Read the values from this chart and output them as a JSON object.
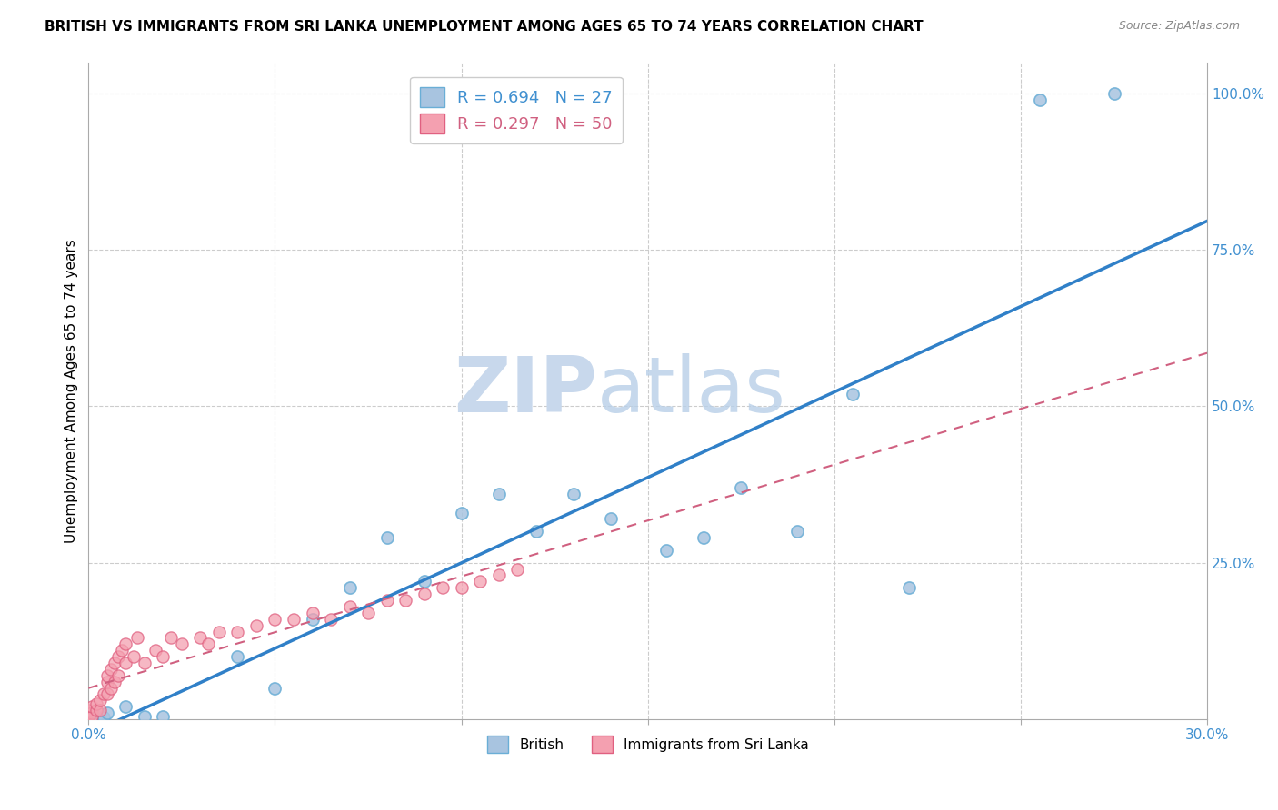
{
  "title": "BRITISH VS IMMIGRANTS FROM SRI LANKA UNEMPLOYMENT AMONG AGES 65 TO 74 YEARS CORRELATION CHART",
  "source": "Source: ZipAtlas.com",
  "ylabel": "Unemployment Among Ages 65 to 74 years",
  "xlim": [
    0.0,
    0.3
  ],
  "ylim": [
    0.0,
    1.05
  ],
  "xticks": [
    0.0,
    0.05,
    0.1,
    0.15,
    0.2,
    0.25,
    0.3
  ],
  "xticklabels": [
    "0.0%",
    "",
    "",
    "",
    "",
    "",
    "30.0%"
  ],
  "yticks_right": [
    0.0,
    0.25,
    0.5,
    0.75,
    1.0
  ],
  "yticklabels_right": [
    "",
    "25.0%",
    "50.0%",
    "75.0%",
    "100.0%"
  ],
  "british_color": "#a8c4e0",
  "british_edge_color": "#6aaed6",
  "sri_lanka_color": "#f4a0b0",
  "sri_lanka_edge_color": "#e06080",
  "british_line_color": "#3080c8",
  "sri_lanka_line_color": "#d06080",
  "legend_R_british": "R = 0.694",
  "legend_N_british": "N = 27",
  "legend_R_sri_lanka": "R = 0.297",
  "legend_N_sri_lanka": "N = 50",
  "watermark_color": "#c8d8ec",
  "british_x": [
    0.001,
    0.002,
    0.003,
    0.004,
    0.005,
    0.01,
    0.015,
    0.02,
    0.04,
    0.05,
    0.06,
    0.07,
    0.08,
    0.09,
    0.1,
    0.11,
    0.12,
    0.13,
    0.14,
    0.155,
    0.165,
    0.175,
    0.19,
    0.205,
    0.22,
    0.255,
    0.275
  ],
  "british_y": [
    0.01,
    0.005,
    0.008,
    0.003,
    0.01,
    0.02,
    0.005,
    0.005,
    0.1,
    0.05,
    0.16,
    0.21,
    0.29,
    0.22,
    0.33,
    0.36,
    0.3,
    0.36,
    0.32,
    0.27,
    0.29,
    0.37,
    0.3,
    0.52,
    0.21,
    0.99,
    1.0
  ],
  "sri_lanka_x": [
    0.0,
    0.0,
    0.0,
    0.0,
    0.001,
    0.001,
    0.001,
    0.002,
    0.002,
    0.003,
    0.003,
    0.004,
    0.005,
    0.005,
    0.005,
    0.006,
    0.006,
    0.007,
    0.007,
    0.008,
    0.008,
    0.009,
    0.01,
    0.01,
    0.012,
    0.013,
    0.015,
    0.018,
    0.02,
    0.022,
    0.025,
    0.03,
    0.032,
    0.035,
    0.04,
    0.045,
    0.05,
    0.055,
    0.06,
    0.065,
    0.07,
    0.075,
    0.08,
    0.085,
    0.09,
    0.095,
    0.1,
    0.105,
    0.11,
    0.115
  ],
  "sri_lanka_y": [
    0.0,
    0.005,
    0.01,
    0.015,
    0.01,
    0.005,
    0.02,
    0.015,
    0.025,
    0.015,
    0.03,
    0.04,
    0.04,
    0.06,
    0.07,
    0.05,
    0.08,
    0.06,
    0.09,
    0.07,
    0.1,
    0.11,
    0.09,
    0.12,
    0.1,
    0.13,
    0.09,
    0.11,
    0.1,
    0.13,
    0.12,
    0.13,
    0.12,
    0.14,
    0.14,
    0.15,
    0.16,
    0.16,
    0.17,
    0.16,
    0.18,
    0.17,
    0.19,
    0.19,
    0.2,
    0.21,
    0.21,
    0.22,
    0.23,
    0.24
  ],
  "marker_size": 90
}
